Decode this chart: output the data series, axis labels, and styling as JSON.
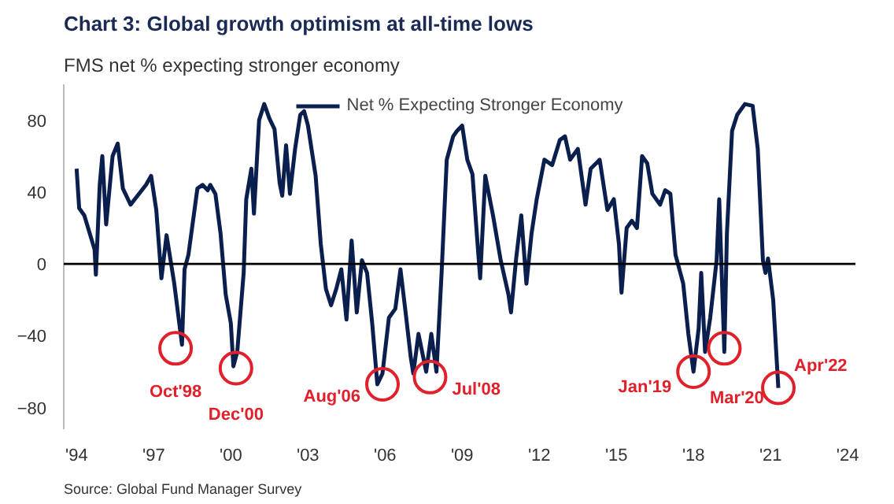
{
  "chart_data": {
    "type": "line",
    "title": "Chart 3: Global growth optimism at all-time lows",
    "subtitle": "FMS net % expecting stronger economy",
    "x": [
      1994.0,
      1994.1,
      1994.3,
      1994.7,
      1994.75,
      1994.9,
      1995.0,
      1995.15,
      1995.4,
      1995.6,
      1995.8,
      1996.1,
      1996.7,
      1996.9,
      1997.1,
      1997.3,
      1997.5,
      1997.8,
      1998.1,
      1998.2,
      1998.35,
      1998.7,
      1998.9,
      1999.1,
      1999.2,
      1999.4,
      1999.6,
      1999.8,
      2000.0,
      2000.1,
      2000.25,
      2000.5,
      2000.6,
      2000.8,
      2000.9,
      2001.1,
      2001.3,
      2001.5,
      2001.7,
      2001.9,
      2002.0,
      2002.15,
      2002.3,
      2002.5,
      2002.7,
      2002.85,
      2003.0,
      2003.3,
      2003.5,
      2003.7,
      2003.9,
      2004.1,
      2004.3,
      2004.5,
      2004.7,
      2004.9,
      2005.1,
      2005.3,
      2005.5,
      2005.7,
      2005.9,
      2006.15,
      2006.4,
      2006.6,
      2006.8,
      2007.0,
      2007.1,
      2007.3,
      2007.6,
      2007.8,
      2008.0,
      2008.2,
      2008.4,
      2008.65,
      2008.8,
      2009.0,
      2009.2,
      2009.4,
      2009.6,
      2009.7,
      2009.9,
      2010.2,
      2010.5,
      2010.8,
      2010.9,
      2011.1,
      2011.3,
      2011.5,
      2011.7,
      2011.9,
      2012.2,
      2012.5,
      2012.8,
      2013.0,
      2013.2,
      2013.5,
      2013.8,
      2014.0,
      2014.35,
      2014.65,
      2014.9,
      2015.1,
      2015.2,
      2015.4,
      2015.6,
      2015.8,
      2016.0,
      2016.2,
      2016.4,
      2016.7,
      2016.9,
      2017.1,
      2017.3,
      2017.6,
      2017.8,
      2018.0,
      2018.2,
      2018.3,
      2018.45,
      2018.65,
      2018.9,
      2019.0,
      2019.2,
      2019.3,
      2019.5,
      2019.7,
      2020.0,
      2020.3,
      2020.5,
      2020.7,
      2020.8,
      2020.9,
      2021.1,
      2021.3
    ],
    "series": [
      {
        "name": "Net % Expecting Stronger Economy",
        "color": "#0b1f4f",
        "values": [
          53,
          31,
          27,
          8,
          -6,
          44,
          60,
          22,
          60,
          67,
          42,
          33,
          44,
          49,
          30,
          -8,
          16,
          -11,
          -45,
          -3,
          5,
          42,
          44,
          41,
          44,
          39,
          17,
          -17,
          -33,
          -57,
          -49,
          -5,
          36,
          53,
          28,
          80,
          89,
          81,
          75,
          45,
          38,
          66,
          39,
          64,
          83,
          85,
          77,
          49,
          11,
          -14,
          -23,
          -14,
          -3,
          -31,
          13,
          -27,
          2,
          -5,
          -33,
          -67,
          -61,
          -30,
          -25,
          -3,
          -27,
          -52,
          -61,
          -39,
          -60,
          -39,
          -60,
          -5,
          58,
          71,
          74,
          77,
          58,
          50,
          11,
          -8,
          49,
          27,
          2,
          -17,
          -27,
          3,
          27,
          -11,
          17,
          36,
          58,
          55,
          69,
          71,
          58,
          64,
          33,
          53,
          58,
          30,
          36,
          11,
          -16,
          20,
          24,
          20,
          60,
          56,
          39,
          33,
          41,
          39,
          5,
          -11,
          -39,
          -60,
          -36,
          -5,
          -49,
          -30,
          2,
          36,
          -49,
          17,
          74,
          83,
          89,
          88,
          64,
          2,
          -5,
          3,
          -20,
          -69
        ]
      }
    ],
    "xlim": [
      1993.5,
      2024.3
    ],
    "ylim": [
      -92,
      100
    ],
    "xticks": [
      {
        "value": 1994,
        "label": "'94"
      },
      {
        "value": 1997,
        "label": "'97"
      },
      {
        "value": 2000,
        "label": "'00"
      },
      {
        "value": 2003,
        "label": "'03"
      },
      {
        "value": 2006,
        "label": "'06"
      },
      {
        "value": 2009,
        "label": "'09"
      },
      {
        "value": 2012,
        "label": "'12"
      },
      {
        "value": 2015,
        "label": "'15"
      },
      {
        "value": 2018,
        "label": "'18"
      },
      {
        "value": 2021,
        "label": "'21"
      },
      {
        "value": 2024,
        "label": "'24"
      }
    ],
    "yticks": [
      -80,
      -40,
      0,
      40,
      80
    ],
    "ref_lines": [
      {
        "axis": "y",
        "value": 0,
        "color": "#000000"
      }
    ],
    "annotations": [
      {
        "text": "Oct'98",
        "x": 1997.85,
        "y": -47
      },
      {
        "text": "Dec'00",
        "x": 2000.2,
        "y": -58
      },
      {
        "text": "Aug'06",
        "x": 2005.9,
        "y": -67
      },
      {
        "text": "Jul'08",
        "x": 2007.75,
        "y": -63
      },
      {
        "text": "Jan'19",
        "x": 2018.0,
        "y": -60
      },
      {
        "text": "Mar'20",
        "x": 2019.2,
        "y": -47
      },
      {
        "text": "Apr'22",
        "x": 2021.3,
        "y": -69
      },
      "Source: Global Fund Manager Survey"
    ],
    "legend": "top",
    "grid": false
  }
}
